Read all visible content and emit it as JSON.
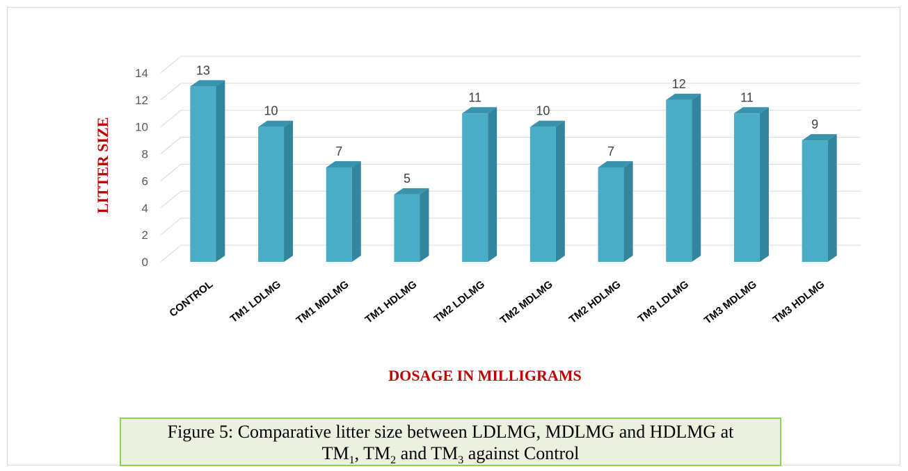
{
  "chart_data": {
    "type": "bar",
    "categories": [
      "CONTROL",
      "TM1 LDLMG",
      "TM1 MDLMG",
      "TM1 HDLMG",
      "TM2 LDLMG",
      "TM2 MDLMG",
      "TM2 HDLMG",
      "TM3 LDLMG",
      "TM3 MDLMG",
      "TM3 HDLMG"
    ],
    "values": [
      13,
      10,
      7,
      5,
      11,
      10,
      7,
      12,
      11,
      9
    ],
    "xlabel": "DOSAGE IN MILLIGRAMS",
    "ylabel": "LITTER SIZE",
    "ylim": [
      0,
      14
    ],
    "yticks": [
      0,
      2,
      4,
      6,
      8,
      10,
      12,
      14
    ],
    "grid": true,
    "legend": "none",
    "bar_color": "#4bacc6",
    "axis_title_color": "#c00000"
  },
  "caption": {
    "line1": "Figure 5: Comparative litter size between LDLMG, MDLMG and HDLMG at",
    "tm_label": "TM",
    "sub1": "1",
    "sub2": "2",
    "sub3": "3",
    "sep_comma": ", ",
    "sep_and": " and ",
    "tail": " against Control"
  }
}
